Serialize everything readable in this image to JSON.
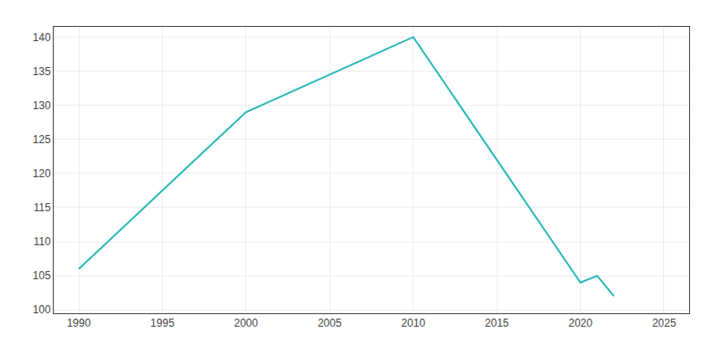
{
  "chart_data": {
    "type": "line",
    "x": [
      1990,
      2000,
      2010,
      2020,
      2021,
      2022
    ],
    "values": [
      106,
      129,
      140,
      104,
      105,
      102
    ],
    "color": "#29b8b8",
    "xlim": [
      1988.5,
      2026.5
    ],
    "ylim": [
      99.5,
      141.5
    ],
    "xticks": [
      1990,
      1995,
      2000,
      2005,
      2010,
      2015,
      2020,
      2025
    ],
    "yticks": [
      100,
      105,
      110,
      115,
      120,
      125,
      130,
      135,
      140
    ],
    "grid": true
  }
}
